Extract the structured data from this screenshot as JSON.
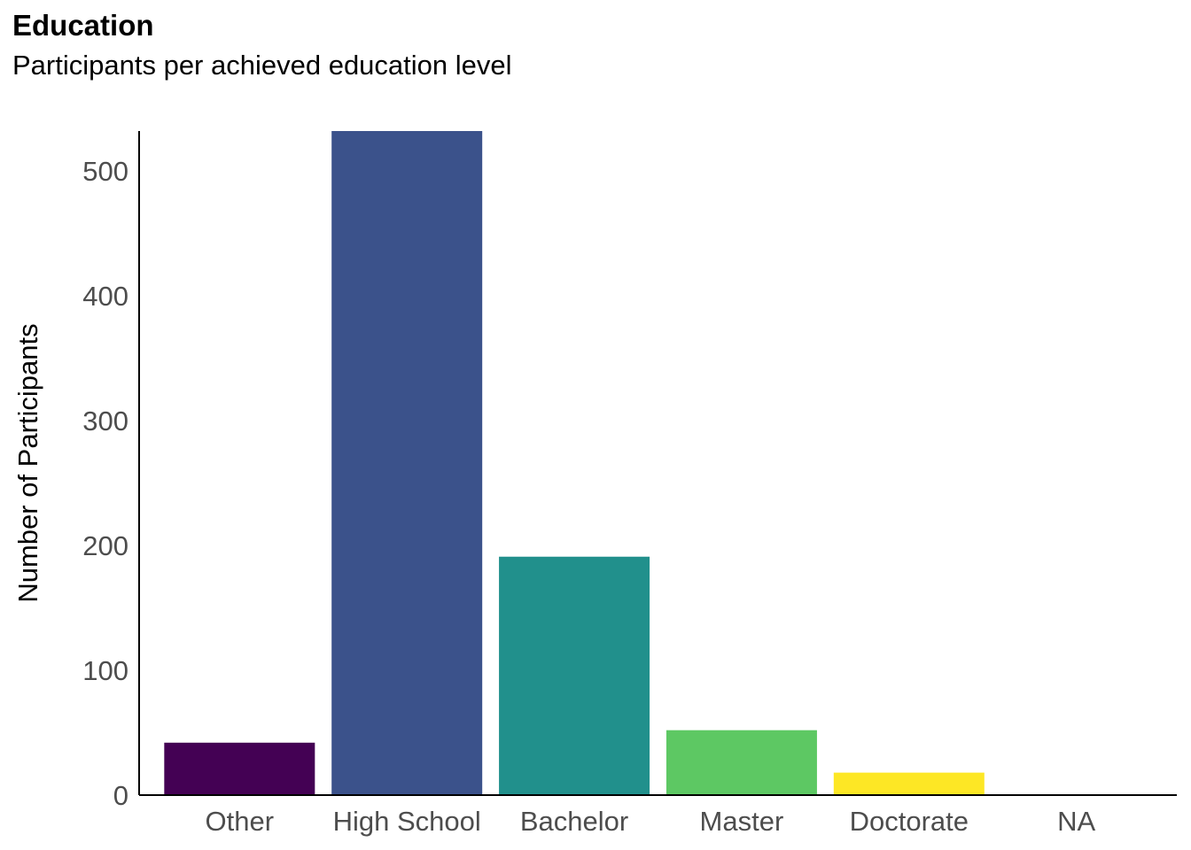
{
  "chart_data": {
    "type": "bar",
    "title": "Education",
    "subtitle": "Participants per achieved education level",
    "xlabel": "",
    "ylabel": "Number of Participants",
    "categories": [
      "Other",
      "High School",
      "Bachelor",
      "Master",
      "Doctorate",
      "NA"
    ],
    "values": [
      42,
      532,
      191,
      52,
      18,
      0
    ],
    "colors": [
      "#440154",
      "#3B528B",
      "#21908C",
      "#5DC863",
      "#FDE725",
      "#FFFFFF"
    ],
    "ylim": [
      0,
      532
    ],
    "yticks": [
      0,
      100,
      200,
      300,
      400,
      500
    ],
    "grid": false,
    "legend": "none"
  }
}
